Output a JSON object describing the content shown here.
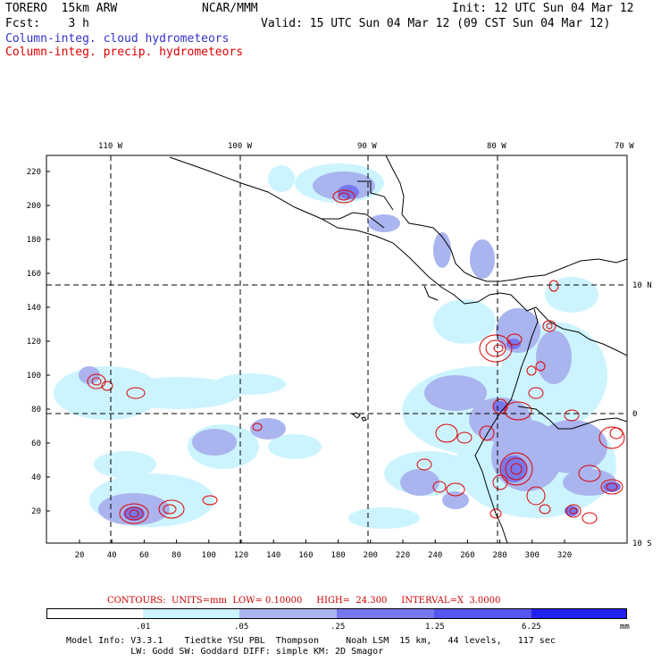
{
  "header": {
    "model": "TORERO  15km ARW",
    "org": "NCAR/MMM",
    "init": "Init: 12 UTC Sun 04 Mar 12",
    "fcst": "Fcst:    3 h",
    "valid": "Valid: 15 UTC Sun 04 Mar 12 (09 CST Sun 04 Mar 12)",
    "field1": "Column-integ. cloud hydrometeors",
    "field2": "Column-integ. precip. hydrometeors"
  },
  "colors": {
    "field1": "#3333cc",
    "field2": "#dd0000",
    "cloud_light": "#ccf4ff",
    "cloud_mid": "#aab4ee",
    "cloud_dark": "#7878ee",
    "precip": "#dd0000"
  },
  "map": {
    "lon_labels": [
      "110 W",
      "100 W",
      "90 W",
      "80 W",
      "70 W"
    ],
    "lat_labels": [
      "10 N",
      "0",
      "10 S"
    ],
    "y_ticks": [
      "220",
      "200",
      "180",
      "160",
      "140",
      "120",
      "100",
      "80",
      "60",
      "40",
      "20"
    ],
    "x_ticks": [
      "20",
      "40",
      "60",
      "80",
      "100",
      "120",
      "140",
      "160",
      "180",
      "200",
      "220",
      "240",
      "260",
      "280",
      "300",
      "320"
    ]
  },
  "legend": {
    "contours": "CONTOURS:  UNITS=mm  LOW= 0.10000     HIGH=  24.300     INTERVAL=X  3.0000",
    "ticks": [
      ".01",
      ".05",
      ".25",
      "1.25",
      "6.25"
    ],
    "unit": "mm",
    "bar_colors": [
      "#ffffff",
      "#ccf4ff",
      "#aab4ee",
      "#7878ee",
      "#5555f0",
      "#2222ee"
    ]
  },
  "footer": {
    "line1": "Model Info: V3.3.1    Tiedtke YSU PBL  Thompson     Noah LSM  15 km,   44 levels,   117 sec",
    "line2": "            LW: Godd SW: Goddard DIFF: simple KM: 2D Smagor"
  }
}
